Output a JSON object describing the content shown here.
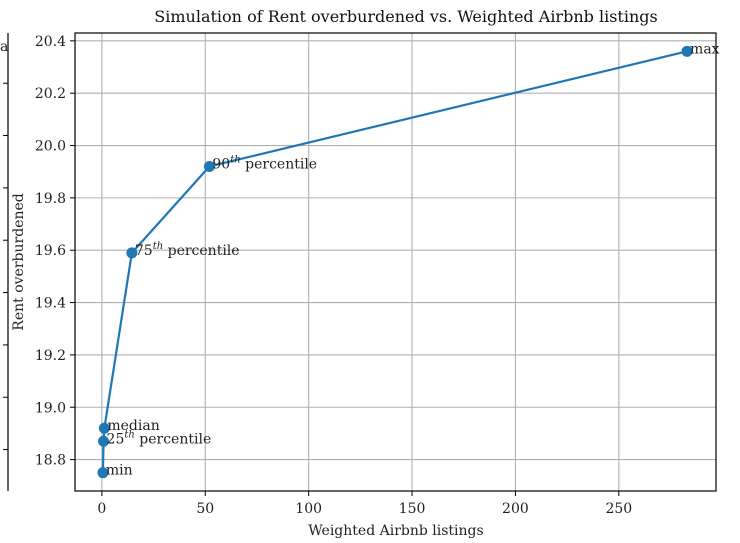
{
  "chart_data": {
    "type": "line",
    "title": "Simulation of Rent overburdened vs. Weighted Airbnb listings",
    "xlabel": "Weighted Airbnb listings",
    "ylabel": "Rent overburdened",
    "xlim": [
      -13,
      297
    ],
    "ylim": [
      18.68,
      20.43
    ],
    "xticks": [
      0,
      50,
      100,
      150,
      200,
      250
    ],
    "yticks": [
      18.8,
      19.0,
      19.2,
      19.4,
      19.6,
      19.8,
      20.0,
      20.2,
      20.4
    ],
    "grid": true,
    "series": [
      {
        "color": "#1f77b4",
        "points": [
          {
            "x": 0.5,
            "y": 18.75,
            "label_main": "min",
            "label_sup": "",
            "label_tail": ""
          },
          {
            "x": 0.8,
            "y": 18.87,
            "label_main": "25",
            "label_sup": "th",
            "label_tail": " percentile"
          },
          {
            "x": 1.2,
            "y": 18.92,
            "label_main": "median",
            "label_sup": "",
            "label_tail": ""
          },
          {
            "x": 14.5,
            "y": 19.59,
            "label_main": "75",
            "label_sup": "th",
            "label_tail": " percentile"
          },
          {
            "x": 52,
            "y": 19.92,
            "label_main": "90",
            "label_sup": "th",
            "label_tail": " percentile"
          },
          {
            "x": 283,
            "y": 20.36,
            "label_main": "max",
            "label_sup": "",
            "label_tail": ""
          }
        ]
      }
    ],
    "side_panel_fragment": "a"
  }
}
